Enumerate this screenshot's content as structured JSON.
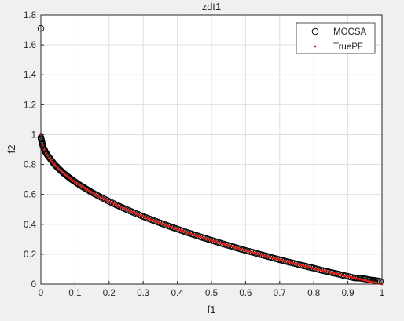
{
  "chart_data": {
    "type": "scatter",
    "title": "zdt1",
    "xlabel": "f1",
    "ylabel": "f2",
    "xlim": [
      0,
      1
    ],
    "ylim": [
      0,
      1.8
    ],
    "xticks": [
      0,
      0.1,
      0.2,
      0.3,
      0.4,
      0.5,
      0.6,
      0.7,
      0.8,
      0.9,
      1
    ],
    "xtick_labels": [
      "0",
      "0.1",
      "0.2",
      "0.3",
      "0.4",
      "0.5",
      "0.6",
      "0.7",
      "0.8",
      "0.9",
      "1"
    ],
    "yticks": [
      0,
      0.2,
      0.4,
      0.6,
      0.8,
      1,
      1.2,
      1.4,
      1.6,
      1.8
    ],
    "ytick_labels": [
      "0",
      "0.2",
      "0.4",
      "0.6",
      "0.8",
      "1",
      "1.2",
      "1.4",
      "1.6",
      "1.8"
    ],
    "grid": true,
    "legend_position": "top-right",
    "series": [
      {
        "name": "MOCSA",
        "marker": "open-circle",
        "color": "#000000",
        "points": [
          [
            0.0,
            1.71
          ],
          [
            0.0,
            0.98
          ],
          [
            0.001,
            0.97
          ],
          [
            0.004,
            0.94
          ],
          [
            0.008,
            0.91
          ],
          [
            0.013,
            0.885
          ],
          [
            0.02,
            0.86
          ],
          [
            0.03,
            0.83
          ],
          [
            0.04,
            0.8
          ],
          [
            0.05,
            0.777
          ],
          [
            0.06,
            0.755
          ],
          [
            0.07,
            0.735
          ],
          [
            0.08,
            0.717
          ],
          [
            0.09,
            0.7
          ],
          [
            0.1,
            0.684
          ],
          [
            0.115,
            0.661
          ],
          [
            0.13,
            0.64
          ],
          [
            0.145,
            0.619
          ],
          [
            0.16,
            0.6
          ],
          [
            0.18,
            0.576
          ],
          [
            0.2,
            0.553
          ],
          [
            0.22,
            0.531
          ],
          [
            0.24,
            0.51
          ],
          [
            0.26,
            0.49
          ],
          [
            0.28,
            0.471
          ],
          [
            0.3,
            0.452
          ],
          [
            0.32,
            0.434
          ],
          [
            0.34,
            0.417
          ],
          [
            0.36,
            0.4
          ],
          [
            0.38,
            0.384
          ],
          [
            0.4,
            0.368
          ],
          [
            0.42,
            0.352
          ],
          [
            0.44,
            0.337
          ],
          [
            0.46,
            0.322
          ],
          [
            0.48,
            0.307
          ],
          [
            0.5,
            0.293
          ],
          [
            0.52,
            0.279
          ],
          [
            0.54,
            0.265
          ],
          [
            0.56,
            0.252
          ],
          [
            0.58,
            0.238
          ],
          [
            0.6,
            0.225
          ],
          [
            0.62,
            0.213
          ],
          [
            0.64,
            0.2
          ],
          [
            0.66,
            0.188
          ],
          [
            0.68,
            0.175
          ],
          [
            0.7,
            0.163
          ],
          [
            0.72,
            0.151
          ],
          [
            0.74,
            0.14
          ],
          [
            0.76,
            0.128
          ],
          [
            0.78,
            0.117
          ],
          [
            0.8,
            0.106
          ],
          [
            0.82,
            0.094
          ],
          [
            0.84,
            0.083
          ],
          [
            0.86,
            0.073
          ],
          [
            0.88,
            0.062
          ],
          [
            0.9,
            0.051
          ],
          [
            0.92,
            0.041
          ],
          [
            0.935,
            0.04
          ],
          [
            0.95,
            0.035
          ],
          [
            0.965,
            0.028
          ],
          [
            0.98,
            0.024
          ],
          [
            0.995,
            0.018
          ]
        ]
      },
      {
        "name": "TruePF",
        "marker": "dot",
        "color": "#e0201b",
        "function": "1-sqrt(x)",
        "x_start": 0,
        "x_end": 1,
        "count": 200
      }
    ]
  }
}
